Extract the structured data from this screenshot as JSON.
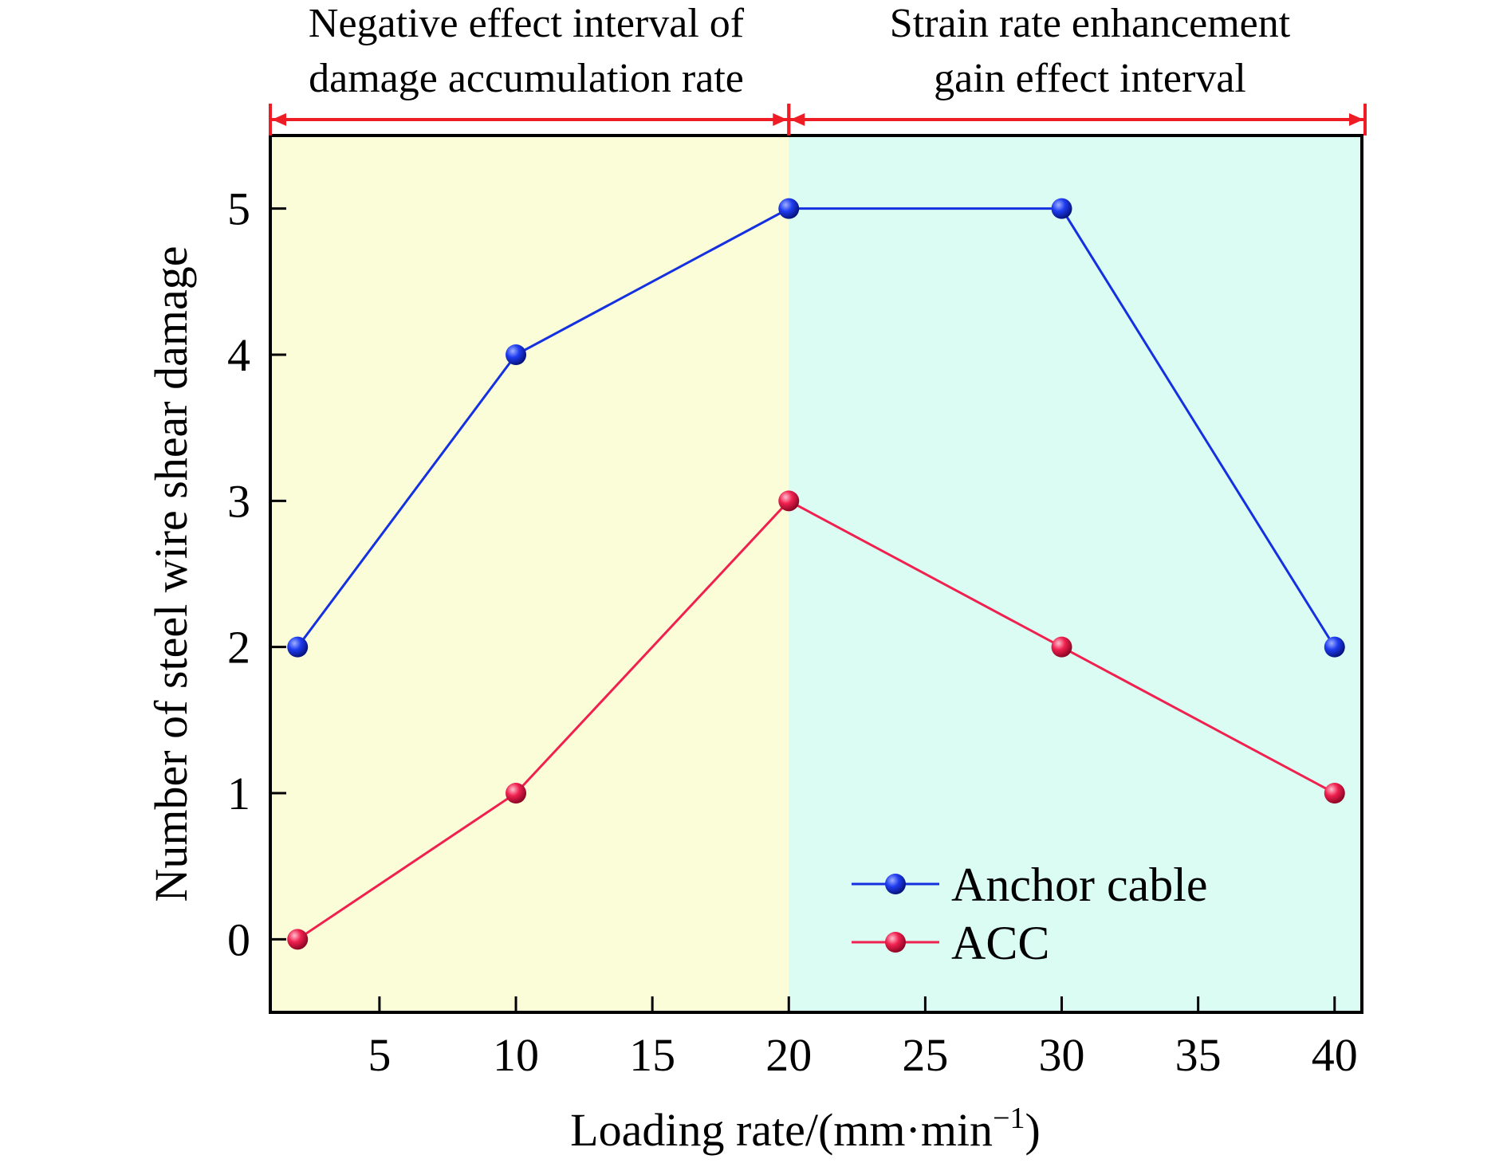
{
  "chart_data": {
    "type": "line",
    "xlabel": "Loading rate/(mm·min",
    "xlabel_superscript": "−1",
    "xlabel_close": ")",
    "ylabel": "Number of steel wire shear damage",
    "xlim": [
      1,
      41
    ],
    "ylim": [
      -0.5,
      5.5
    ],
    "xticks": [
      5,
      10,
      15,
      20,
      25,
      30,
      35,
      40
    ],
    "yticks": [
      0,
      1,
      2,
      3,
      4,
      5
    ],
    "grid": false,
    "legend_position": "bottom-right",
    "x": [
      2,
      10,
      20,
      30,
      40
    ],
    "series": [
      {
        "name": "Anchor cable",
        "values": [
          2,
          4,
          5,
          5,
          2
        ],
        "color": "#1530e0"
      },
      {
        "name": "ACC",
        "values": [
          0,
          1,
          3,
          2,
          1
        ],
        "color": "#f0204f"
      }
    ],
    "regions": [
      {
        "x_range": [
          1,
          20
        ],
        "fill": "#fafdd8",
        "label_lines": [
          "Negative effect interval of",
          "damage accumulation rate"
        ]
      },
      {
        "x_range": [
          20,
          41
        ],
        "fill": "#dbfcf3",
        "label_lines": [
          "Strain rate enhancement",
          "gain effect interval"
        ]
      }
    ],
    "bracket_color": "#ee1c24"
  }
}
